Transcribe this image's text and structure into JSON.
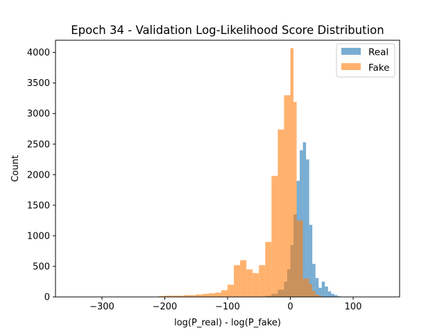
{
  "chart_data": {
    "type": "histogram",
    "title": "Epoch 34 - Validation Log-Likelihood Score Distribution",
    "xlabel": "log(P_real) - log(P_fake)",
    "ylabel": "Count",
    "xlim": [
      -374,
      174
    ],
    "ylim": [
      0,
      4200
    ],
    "xticks": [
      -300,
      -200,
      -100,
      0,
      100
    ],
    "yticks": [
      0,
      500,
      1000,
      1500,
      2000,
      2500,
      3000,
      3500,
      4000
    ],
    "grid": false,
    "legend_position": "top-right",
    "colors": {
      "Real": "#1f77b4",
      "Fake": "#ff7f0e"
    },
    "bar_alpha": 0.6,
    "series": [
      {
        "name": "Real",
        "bins": [
          {
            "x0": -40,
            "x1": -30,
            "count": 20
          },
          {
            "x0": -30,
            "x1": -20,
            "count": 50
          },
          {
            "x0": -20,
            "x1": -10,
            "count": 120
          },
          {
            "x0": -10,
            "x1": -5,
            "count": 250
          },
          {
            "x0": -5,
            "x1": 0,
            "count": 450
          },
          {
            "x0": 0,
            "x1": 5,
            "count": 850
          },
          {
            "x0": 5,
            "x1": 10,
            "count": 1350
          },
          {
            "x0": 10,
            "x1": 15,
            "count": 1900
          },
          {
            "x0": 15,
            "x1": 20,
            "count": 2400
          },
          {
            "x0": 20,
            "x1": 25,
            "count": 2530
          },
          {
            "x0": 25,
            "x1": 30,
            "count": 2250
          },
          {
            "x0": 30,
            "x1": 35,
            "count": 1180
          },
          {
            "x0": 35,
            "x1": 40,
            "count": 540
          },
          {
            "x0": 40,
            "x1": 45,
            "count": 310
          },
          {
            "x0": 45,
            "x1": 50,
            "count": 150
          },
          {
            "x0": 50,
            "x1": 55,
            "count": 250
          },
          {
            "x0": 55,
            "x1": 60,
            "count": 170
          },
          {
            "x0": 60,
            "x1": 65,
            "count": 90
          },
          {
            "x0": 65,
            "x1": 70,
            "count": 50
          },
          {
            "x0": 70,
            "x1": 75,
            "count": 30
          },
          {
            "x0": 75,
            "x1": 80,
            "count": 10
          }
        ]
      },
      {
        "name": "Fake",
        "bins": [
          {
            "x0": -210,
            "x1": -200,
            "count": 15
          },
          {
            "x0": -200,
            "x1": -190,
            "count": 20
          },
          {
            "x0": -190,
            "x1": -180,
            "count": 20
          },
          {
            "x0": -180,
            "x1": -170,
            "count": 20
          },
          {
            "x0": -170,
            "x1": -160,
            "count": 30
          },
          {
            "x0": -160,
            "x1": -150,
            "count": 30
          },
          {
            "x0": -150,
            "x1": -140,
            "count": 40
          },
          {
            "x0": -140,
            "x1": -130,
            "count": 50
          },
          {
            "x0": -130,
            "x1": -120,
            "count": 60
          },
          {
            "x0": -120,
            "x1": -110,
            "count": 70
          },
          {
            "x0": -110,
            "x1": -100,
            "count": 110
          },
          {
            "x0": -100,
            "x1": -90,
            "count": 200
          },
          {
            "x0": -90,
            "x1": -80,
            "count": 520
          },
          {
            "x0": -80,
            "x1": -70,
            "count": 600
          },
          {
            "x0": -70,
            "x1": -60,
            "count": 450
          },
          {
            "x0": -60,
            "x1": -50,
            "count": 390
          },
          {
            "x0": -50,
            "x1": -40,
            "count": 520
          },
          {
            "x0": -40,
            "x1": -30,
            "count": 900
          },
          {
            "x0": -30,
            "x1": -20,
            "count": 1980
          },
          {
            "x0": -20,
            "x1": -10,
            "count": 2740
          },
          {
            "x0": -10,
            "x1": 0,
            "count": 3300
          },
          {
            "x0": 0,
            "x1": 5,
            "count": 4070
          },
          {
            "x0": 5,
            "x1": 10,
            "count": 3190
          },
          {
            "x0": 10,
            "x1": 20,
            "count": 1250
          },
          {
            "x0": 20,
            "x1": 30,
            "count": 300
          },
          {
            "x0": 30,
            "x1": 35,
            "count": 210
          },
          {
            "x0": 35,
            "x1": 40,
            "count": 100
          },
          {
            "x0": 40,
            "x1": 45,
            "count": 40
          },
          {
            "x0": 45,
            "x1": 50,
            "count": 20
          }
        ]
      }
    ]
  }
}
